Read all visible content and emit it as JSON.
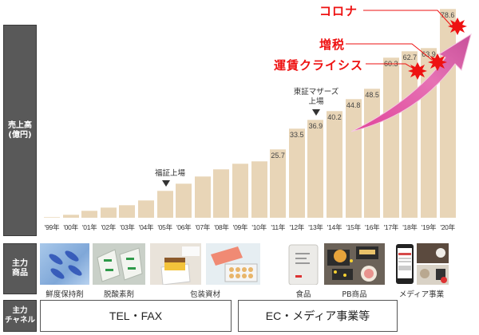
{
  "chart_data": {
    "type": "bar",
    "title": "",
    "ylabel": "売上高（億円）",
    "xlabel": "",
    "categories": [
      "'99年",
      "'00年",
      "'01年",
      "'02年",
      "'03年",
      "'04年",
      "'05年",
      "'06年",
      "'07年",
      "'08年",
      "'09年",
      "'10年",
      "'11年",
      "'12年",
      "'13年",
      "'14年",
      "'15年",
      "'16年",
      "'17年",
      "'18年",
      "'19年",
      "'20年"
    ],
    "values": [
      0.3,
      1.2,
      2.7,
      3.9,
      4.8,
      6.6,
      10.2,
      12.9,
      15.6,
      18.3,
      20.4,
      21.3,
      25.7,
      33.5,
      36.9,
      40.2,
      44.8,
      48.5,
      60.3,
      62.7,
      63.9,
      78.6
    ],
    "estimated_indices": [
      0,
      1,
      2,
      3,
      4,
      5,
      6,
      7,
      8,
      9,
      10,
      11
    ],
    "estimated_note": "Values for '99–'10 are unlabeled in the image and were estimated from bar heights; they are approximate.",
    "data_labels": [
      "",
      "",
      "",
      "",
      "",
      "",
      "",
      "",
      "",
      "",
      "",
      "",
      "25.7",
      "33.5",
      "36.9",
      "40.2",
      "44.8",
      "48.5",
      "60.3",
      "62.7",
      "63.9",
      "78.6"
    ],
    "ylim": [
      0,
      80
    ],
    "grid": false,
    "legend": null,
    "bar_color": "#e8d5b7",
    "annotations": [
      {
        "text": "福証上場",
        "at": "'05年"
      },
      {
        "text": "東証マザーズ\n上場",
        "at": "'13年"
      },
      {
        "text": "運賃クライシス",
        "at": "'18年",
        "color": "#ee1111"
      },
      {
        "text": "増税",
        "at": "'19年",
        "color": "#ee1111"
      },
      {
        "text": "コロナ",
        "at": "'20年",
        "color": "#ee1111"
      }
    ]
  },
  "labels": {
    "sales": "売上高\n(億円)",
    "products": "主力\n商品",
    "channels": "主力\nチャネル"
  },
  "annotations": {
    "fukusho": "福証上場",
    "mothers": "東証マザーズ\n上場",
    "crisis": "運賃クライシス",
    "tax": "増税",
    "corona": "コロナ"
  },
  "products": [
    {
      "label": "鮮度保持剤",
      "image": "freshness-keeper-packets"
    },
    {
      "label": "脱酸素剤",
      "image": "oxygen-absorber-packets"
    },
    {
      "label": "包装資材",
      "image": "packaging-boxes"
    },
    {
      "label": "食品",
      "image": "food-bag"
    },
    {
      "label": "PB商品",
      "image": "private-brand-food"
    },
    {
      "label": "メディア事業",
      "image": "media-smartphone"
    }
  ],
  "channels": [
    {
      "label": "TEL・FAX"
    },
    {
      "label": "EC・メディア事業等"
    }
  ],
  "colors": {
    "bar": "#e8d5b7",
    "side_label_bg": "#595959",
    "event_red": "#ee1111",
    "arrow_pink": "#d63a8c"
  }
}
